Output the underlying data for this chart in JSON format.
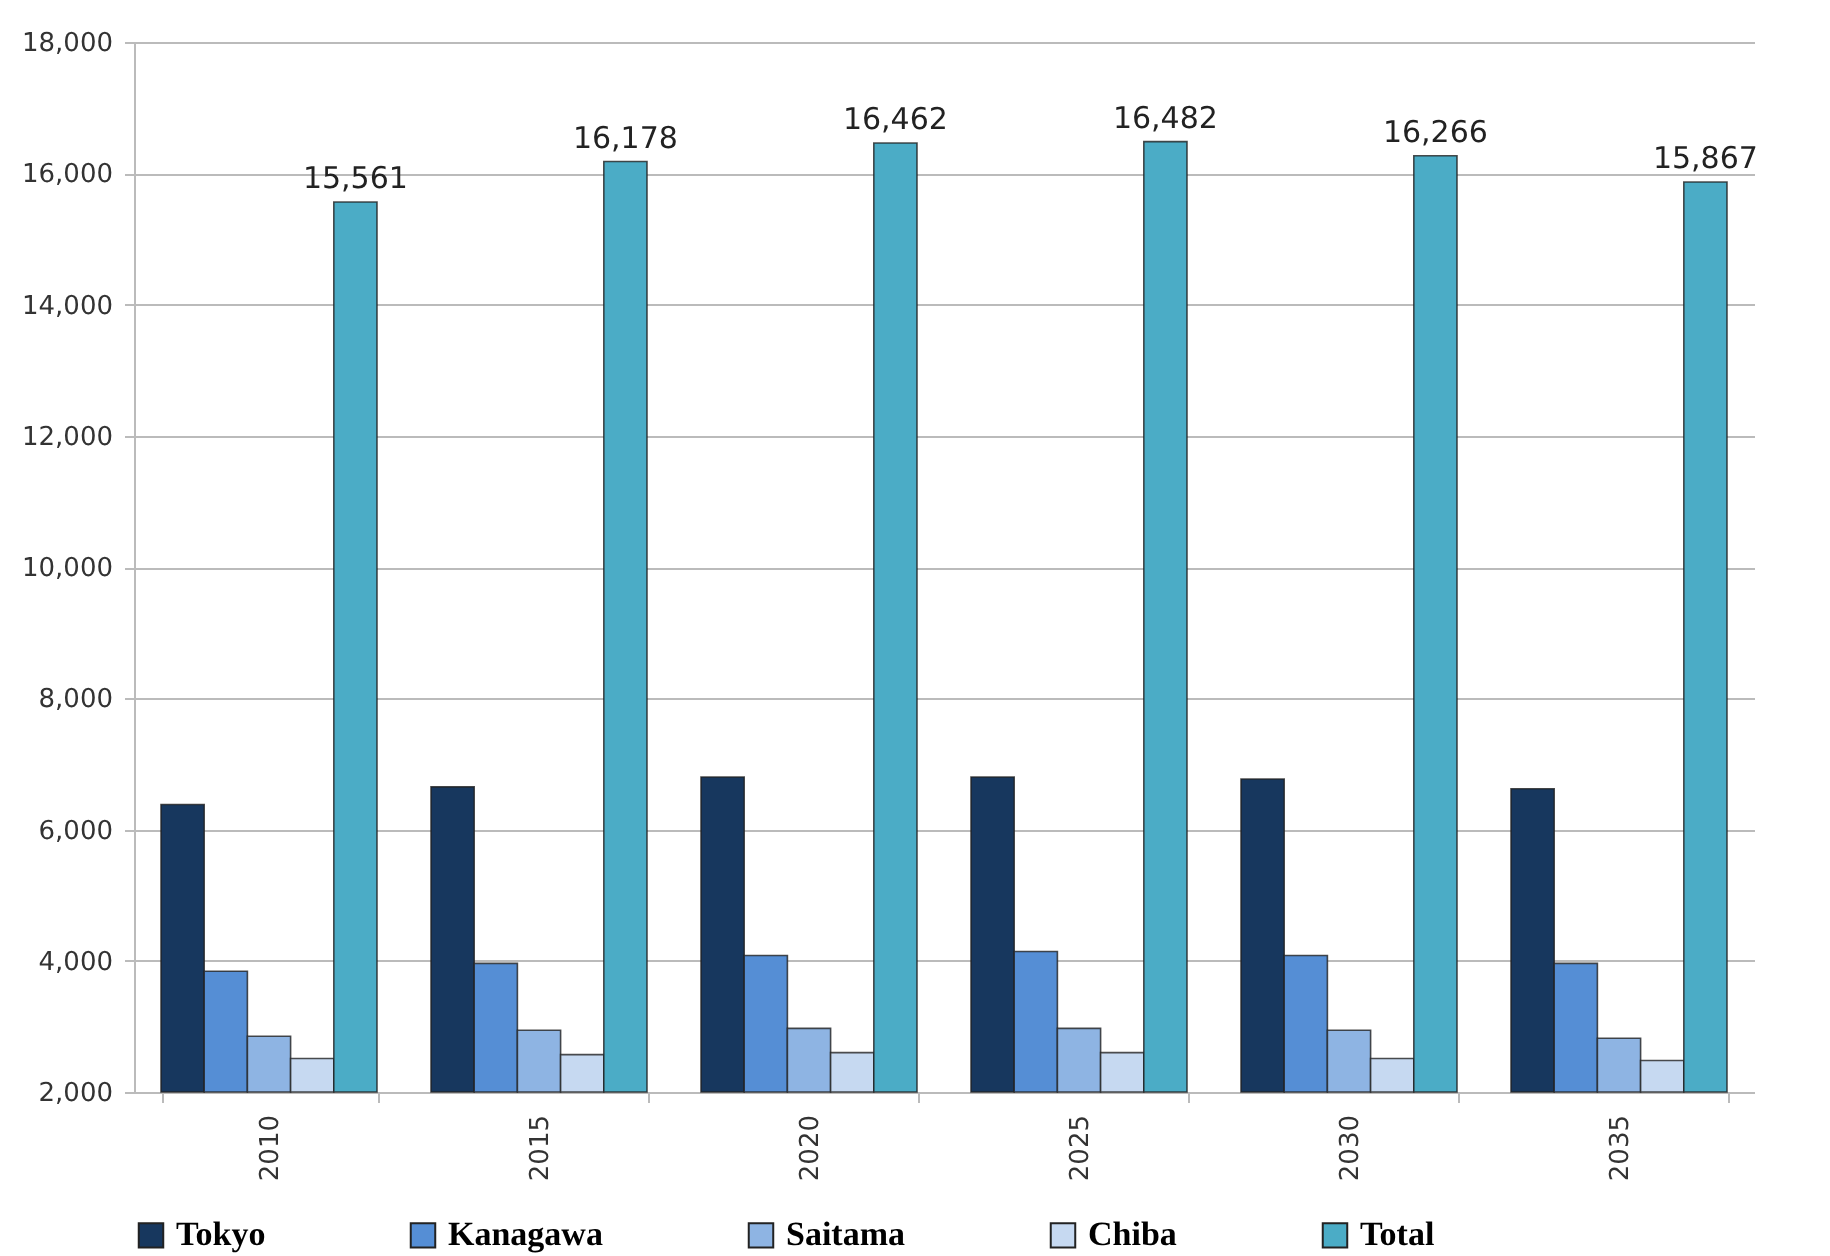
{
  "chart_data": {
    "type": "bar",
    "categories": [
      "2010",
      "2015",
      "2020",
      "2025",
      "2030",
      "2035"
    ],
    "series": [
      {
        "name": "Tokyo",
        "color": "#17375e",
        "values": [
          6380,
          6650,
          6800,
          6800,
          6770,
          6620
        ]
      },
      {
        "name": "Kanagawa",
        "color": "#558ed5",
        "values": [
          3840,
          3960,
          4080,
          4140,
          4080,
          3960
        ]
      },
      {
        "name": "Saitama",
        "color": "#8eb4e3",
        "values": [
          2850,
          2940,
          2970,
          2970,
          2940,
          2820
        ]
      },
      {
        "name": "Chiba",
        "color": "#c6d9f1",
        "values": [
          2510,
          2570,
          2600,
          2600,
          2510,
          2480
        ]
      },
      {
        "name": "Total",
        "color": "#4bacc6",
        "values": [
          15561,
          16178,
          16462,
          16482,
          16266,
          15867
        ],
        "value_labels": [
          "15,561",
          "16,178",
          "16,462",
          "16,482",
          "16,266",
          "15,867"
        ]
      }
    ],
    "ylim": [
      2000,
      18000
    ],
    "yticks": [
      {
        "value": 2000,
        "label": "2,000"
      },
      {
        "value": 4000,
        "label": "4,000"
      },
      {
        "value": 6000,
        "label": "6,000"
      },
      {
        "value": 8000,
        "label": "8,000"
      },
      {
        "value": 10000,
        "label": "10,000"
      },
      {
        "value": 12000,
        "label": "12,000"
      },
      {
        "value": 14000,
        "label": "14,000"
      },
      {
        "value": 16000,
        "label": "16,000"
      },
      {
        "value": 18000,
        "label": "18,000"
      }
    ],
    "grid": "y",
    "legend": "bottom"
  }
}
